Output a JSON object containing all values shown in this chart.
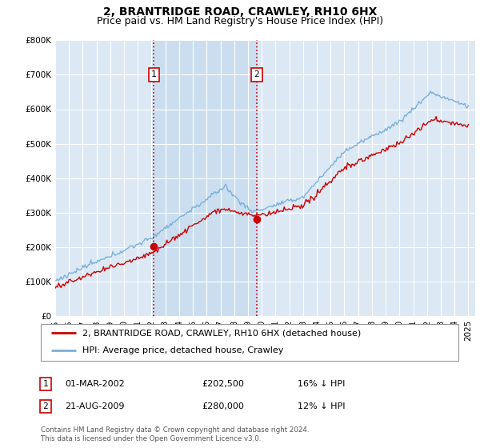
{
  "title": "2, BRANTRIDGE ROAD, CRAWLEY, RH10 6HX",
  "subtitle": "Price paid vs. HM Land Registry's House Price Index (HPI)",
  "ylim": [
    0,
    800000
  ],
  "yticks": [
    0,
    100000,
    200000,
    300000,
    400000,
    500000,
    600000,
    700000,
    800000
  ],
  "ytick_labels": [
    "£0",
    "£100K",
    "£200K",
    "£300K",
    "£400K",
    "£500K",
    "£600K",
    "£700K",
    "£800K"
  ],
  "background_color": "#ffffff",
  "plot_bg_color": "#dce9f5",
  "shade_color": "#c8ddf0",
  "grid_color": "#ffffff",
  "sale1_year": 2002.17,
  "sale1_value": 202500,
  "sale2_year": 2009.64,
  "sale2_value": 280000,
  "hpi_color": "#7ab0d8",
  "price_color": "#cc0000",
  "vline_color": "#cc0000",
  "legend_entry1": "2, BRANTRIDGE ROAD, CRAWLEY, RH10 6HX (detached house)",
  "legend_entry2": "HPI: Average price, detached house, Crawley",
  "table_rows": [
    {
      "num": "1",
      "date": "01-MAR-2002",
      "price": "£202,500",
      "hpi": "16% ↓ HPI"
    },
    {
      "num": "2",
      "date": "21-AUG-2009",
      "price": "£280,000",
      "hpi": "12% ↓ HPI"
    }
  ],
  "footnote": "Contains HM Land Registry data © Crown copyright and database right 2024.\nThis data is licensed under the Open Government Licence v3.0.",
  "title_fontsize": 10,
  "subtitle_fontsize": 9,
  "tick_fontsize": 7.5,
  "legend_fontsize": 8,
  "table_fontsize": 8
}
